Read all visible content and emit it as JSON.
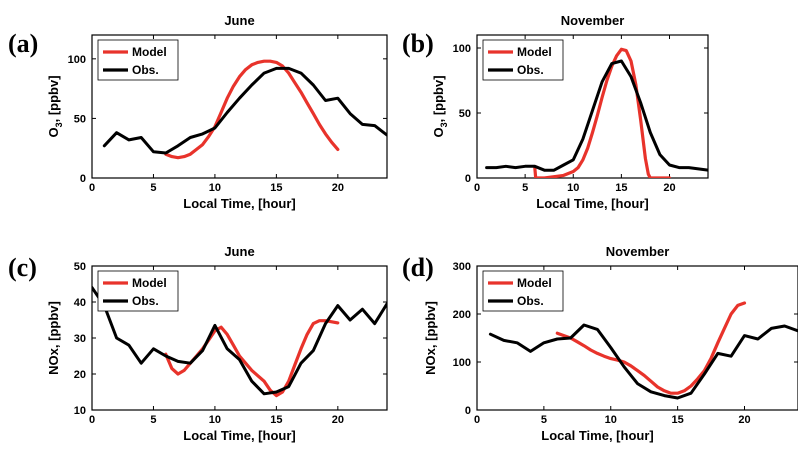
{
  "colors": {
    "model": "#e8332b",
    "obs": "#000000"
  },
  "chart_data": [
    {
      "type": "line",
      "label": "(a)",
      "title": "June",
      "xlabel": "Local Time, [hour]",
      "ylabel": "O3, [ppbv]",
      "ylabel_main": "O",
      "ylabel_sub": "3",
      "ylabel_rest": ", [ppbv]",
      "xlim": [
        0,
        24
      ],
      "ylim": [
        0,
        120
      ],
      "xticks": [
        0,
        5,
        10,
        15,
        20
      ],
      "yticks": [
        0,
        50,
        100
      ],
      "legend_position": "top-left",
      "series": [
        {
          "name": "Model",
          "color": "#e8332b",
          "x": [
            6,
            6.5,
            7,
            7.5,
            8,
            8.5,
            9,
            9.5,
            10,
            10.5,
            11,
            11.5,
            12,
            12.5,
            13,
            13.5,
            14,
            14.5,
            15,
            15.5,
            16,
            16.5,
            17,
            17.5,
            18,
            18.5,
            19,
            19.5,
            20
          ],
          "y": [
            20,
            18,
            17,
            18,
            20,
            24,
            28,
            35,
            43,
            55,
            67,
            77,
            85,
            91,
            95,
            97,
            98,
            98,
            97,
            94,
            88,
            80,
            72,
            63,
            54,
            45,
            37,
            30,
            24
          ]
        },
        {
          "name": "Obs.",
          "color": "#000000",
          "x": [
            1,
            2,
            3,
            4,
            5,
            6,
            7,
            8,
            9,
            10,
            11,
            12,
            13,
            14,
            15,
            16,
            17,
            18,
            19,
            20,
            21,
            22,
            23,
            24
          ],
          "y": [
            27,
            38,
            32,
            34,
            22,
            21,
            27,
            34,
            37,
            42,
            55,
            67,
            78,
            88,
            92,
            92,
            88,
            78,
            65,
            67,
            54,
            45,
            44,
            36
          ]
        }
      ]
    },
    {
      "type": "line",
      "label": "(b)",
      "title": "November",
      "xlabel": "Local Time, [hour]",
      "ylabel": "O3, [ppbv]",
      "ylabel_main": "O",
      "ylabel_sub": "3",
      "ylabel_rest": ", [ppbv]",
      "xlim": [
        0,
        24
      ],
      "ylim": [
        0,
        110
      ],
      "xticks": [
        0,
        5,
        10,
        15,
        20
      ],
      "yticks": [
        0,
        50,
        100
      ],
      "legend_position": "top-left",
      "series": [
        {
          "name": "Model",
          "color": "#e8332b",
          "x": [
            6,
            6.1,
            7,
            8,
            9,
            10,
            10.5,
            11,
            11.5,
            12,
            12.5,
            13,
            13.5,
            14,
            14.5,
            15,
            15.5,
            16,
            16.5,
            17,
            17.5,
            17.8,
            18,
            19,
            20
          ],
          "y": [
            8,
            0,
            0,
            1,
            2,
            5,
            8,
            14,
            23,
            35,
            48,
            62,
            75,
            86,
            94,
            99,
            98,
            90,
            72,
            45,
            15,
            3,
            0,
            0,
            0
          ]
        },
        {
          "name": "Obs.",
          "color": "#000000",
          "x": [
            1,
            2,
            3,
            4,
            5,
            6,
            7,
            8,
            9,
            10,
            11,
            12,
            13,
            14,
            15,
            16,
            17,
            18,
            19,
            20,
            21,
            22,
            23,
            24
          ],
          "y": [
            8,
            8,
            9,
            8,
            9,
            9,
            6,
            6,
            10,
            14,
            30,
            52,
            74,
            88,
            90,
            78,
            58,
            35,
            18,
            10,
            8,
            8,
            7,
            6
          ]
        }
      ]
    },
    {
      "type": "line",
      "label": "(c)",
      "title": "June",
      "xlabel": "Local Time, [hour]",
      "ylabel": "NOx, [ppbv]",
      "xlim": [
        0,
        24
      ],
      "ylim": [
        10,
        50
      ],
      "xticks": [
        0,
        5,
        10,
        15,
        20
      ],
      "yticks": [
        10,
        20,
        30,
        40,
        50
      ],
      "legend_position": "top-left",
      "series": [
        {
          "name": "Model",
          "color": "#e8332b",
          "x": [
            6,
            6.5,
            7,
            7.5,
            8,
            8.5,
            9,
            9.5,
            10,
            10.5,
            11,
            11.5,
            12,
            12.5,
            13,
            13.5,
            14,
            14.5,
            15,
            15.5,
            16,
            16.5,
            17,
            17.5,
            18,
            18.5,
            19,
            19.5,
            20
          ],
          "y": [
            25.5,
            21.5,
            20,
            21,
            23,
            25,
            27,
            29.5,
            32,
            33,
            31,
            28,
            25,
            23,
            21,
            19.5,
            18,
            15.5,
            14,
            15,
            18,
            22.5,
            27,
            31,
            34,
            34.8,
            34.8,
            34.5,
            34.2
          ]
        },
        {
          "name": "Obs.",
          "color": "#000000",
          "x": [
            0,
            1,
            2,
            3,
            4,
            5,
            6,
            7,
            8,
            9,
            10,
            11,
            12,
            13,
            14,
            15,
            16,
            17,
            18,
            19,
            20,
            21,
            22,
            23,
            24
          ],
          "y": [
            44,
            39,
            30,
            28,
            23,
            27,
            25,
            23.5,
            23,
            26.5,
            33.5,
            27,
            24,
            18,
            14.5,
            15,
            16.5,
            23,
            26.5,
            34,
            39,
            35,
            38,
            34,
            39.5
          ]
        }
      ]
    },
    {
      "type": "line",
      "label": "(d)",
      "title": "November",
      "xlabel": "Local Time, [hour]",
      "ylabel": "NOx, [ppbv]",
      "xlim": [
        0,
        24
      ],
      "ylim": [
        0,
        300
      ],
      "xticks": [
        0,
        5,
        10,
        15,
        20
      ],
      "yticks": [
        0,
        100,
        200,
        300
      ],
      "legend_position": "top-left",
      "series": [
        {
          "name": "Model",
          "color": "#e8332b",
          "x": [
            6,
            6.5,
            7,
            7.5,
            8,
            8.5,
            9,
            9.5,
            10,
            10.5,
            11,
            11.5,
            12,
            12.5,
            13,
            13.5,
            14,
            14.5,
            15,
            15.5,
            16,
            16.5,
            17,
            17.5,
            18,
            18.5,
            19,
            19.5,
            20
          ],
          "y": [
            160,
            155,
            150,
            142,
            134,
            125,
            118,
            112,
            107,
            104,
            100,
            92,
            82,
            72,
            60,
            48,
            40,
            35,
            35,
            40,
            50,
            65,
            82,
            108,
            140,
            170,
            200,
            218,
            223
          ]
        },
        {
          "name": "Obs.",
          "color": "#000000",
          "x": [
            1,
            2,
            3,
            4,
            5,
            6,
            7,
            8,
            9,
            10,
            11,
            12,
            13,
            14,
            15,
            16,
            17,
            18,
            19,
            20,
            21,
            22,
            23,
            24
          ],
          "y": [
            158,
            145,
            140,
            122,
            140,
            148,
            150,
            177,
            168,
            130,
            90,
            55,
            38,
            30,
            25,
            35,
            75,
            118,
            112,
            155,
            148,
            170,
            175,
            165
          ]
        }
      ]
    }
  ]
}
